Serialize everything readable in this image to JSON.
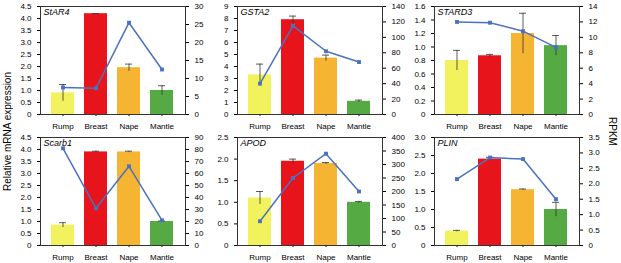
{
  "ylabel": "Relative mRNA expression",
  "y2label": "RPKM",
  "chart_data": [
    {
      "type": "bar",
      "title": "StAR4",
      "categories": [
        "Rump",
        "Breast",
        "Nape",
        "Mantle"
      ],
      "series": [
        {
          "type": "bar",
          "colors": [
            "#f2f25e",
            "#e8141c",
            "#f5b533",
            "#55aa44"
          ],
          "values": [
            0.9,
            4.2,
            1.95,
            1.0
          ],
          "errors": [
            0.35,
            0,
            0.15,
            0.2
          ]
        },
        {
          "type": "line",
          "axis": "y2",
          "color": "#4a72c0",
          "marker": "square",
          "values": [
            7.5,
            7.3,
            25.5,
            12.5
          ]
        }
      ],
      "ylim": [
        0,
        4.5
      ],
      "yticks": [
        0,
        0.5,
        {
          "value": 1,
          "label": "1.0"
        },
        1.5,
        {
          "value": 2,
          "label": "2.0"
        },
        2.5,
        {
          "value": 3,
          "label": "3.0"
        },
        3.5,
        {
          "value": 4,
          "label": "4.0"
        },
        4.5
      ],
      "y2lim": [
        0,
        30
      ],
      "y2ticks": [
        0,
        5,
        10,
        15,
        20,
        25,
        30
      ]
    },
    {
      "type": "bar",
      "title": "GSTA2",
      "categories": [
        "Rump",
        "Breast",
        "Nape",
        "Mantle"
      ],
      "series": [
        {
          "type": "bar",
          "colors": [
            "#f2f25e",
            "#e8141c",
            "#f5b533",
            "#55aa44"
          ],
          "values": [
            3.3,
            7.9,
            4.7,
            1.1
          ],
          "errors": [
            0.9,
            0.3,
            0.25,
            0.1
          ]
        },
        {
          "type": "line",
          "axis": "y2",
          "color": "#4a72c0",
          "marker": "square",
          "values": [
            40,
            115,
            82,
            68
          ]
        }
      ],
      "ylim": [
        0,
        9
      ],
      "yticks": [
        0,
        1,
        2,
        3,
        4,
        5,
        6,
        7,
        8,
        9
      ],
      "y2lim": [
        0,
        140
      ],
      "y2ticks": [
        0,
        20,
        40,
        60,
        80,
        100,
        120,
        140
      ]
    },
    {
      "type": "bar",
      "title": "STARD3",
      "categories": [
        "Rump",
        "Breast",
        "Nape",
        "Mantle"
      ],
      "series": [
        {
          "type": "bar",
          "colors": [
            "#f2f25e",
            "#e8141c",
            "#f5b533",
            "#55aa44"
          ],
          "values": [
            0.8,
            0.87,
            1.2,
            1.02
          ],
          "errors": [
            0.15,
            0.02,
            0.3,
            0.15
          ]
        },
        {
          "type": "line",
          "axis": "y2",
          "color": "#4a72c0",
          "marker": "square",
          "values": [
            12,
            11.9,
            10.8,
            8.7
          ]
        }
      ],
      "ylim": [
        0,
        1.6
      ],
      "yticks": [
        0,
        0.2,
        0.4,
        0.6,
        0.8,
        {
          "value": 1,
          "label": "1.0"
        },
        1.2,
        1.4,
        1.6
      ],
      "y2lim": [
        0,
        14
      ],
      "y2ticks": [
        0,
        2,
        4,
        6,
        8,
        10,
        12,
        14
      ]
    },
    {
      "type": "bar",
      "title": "Scarb1",
      "categories": [
        "Rump",
        "Breast",
        "Nape",
        "Mantle"
      ],
      "series": [
        {
          "type": "bar",
          "colors": [
            "#f2f25e",
            "#e8141c",
            "#f5b533",
            "#55aa44"
          ],
          "values": [
            0.85,
            3.9,
            3.9,
            1.0
          ],
          "errors": [
            0.1,
            0.03,
            0.03,
            0.02
          ]
        },
        {
          "type": "line",
          "axis": "y2",
          "color": "#4a72c0",
          "marker": "square",
          "values": [
            81,
            31,
            66,
            21
          ]
        }
      ],
      "ylim": [
        0,
        4.5
      ],
      "yticks": [
        0,
        0.5,
        {
          "value": 1,
          "label": "1.0"
        },
        1.5,
        {
          "value": 2,
          "label": "2.0"
        },
        2.5,
        {
          "value": 3,
          "label": "3.0"
        },
        3.5,
        {
          "value": 4,
          "label": "4.0"
        },
        4.5
      ],
      "y2lim": [
        0,
        90
      ],
      "y2ticks": [
        0,
        10,
        20,
        30,
        40,
        50,
        60,
        70,
        80,
        90
      ]
    },
    {
      "type": "bar",
      "title": "APOD",
      "categories": [
        "Rump",
        "Breast",
        "Nape",
        "Mantle"
      ],
      "series": [
        {
          "type": "bar",
          "colors": [
            "#f2f25e",
            "#e8141c",
            "#f5b533",
            "#55aa44"
          ],
          "values": [
            1.1,
            1.95,
            1.9,
            1.0
          ],
          "errors": [
            0.15,
            0.05,
            0.02,
            0.02
          ]
        },
        {
          "type": "line",
          "axis": "y2",
          "color": "#4a72c0",
          "marker": "square",
          "values": [
            90,
            250,
            340,
            200
          ]
        }
      ],
      "ylim": [
        0,
        2.5
      ],
      "yticks": [
        0,
        0.5,
        {
          "value": 1,
          "label": "1.0"
        },
        1.5,
        {
          "value": 2,
          "label": "2.0"
        },
        2.5
      ],
      "y2lim": [
        0,
        400
      ],
      "y2ticks": [
        0,
        50,
        100,
        150,
        200,
        250,
        300,
        350,
        400
      ]
    },
    {
      "type": "bar",
      "title": "PLIN",
      "categories": [
        "Rump",
        "Breast",
        "Nape",
        "Mantle"
      ],
      "series": [
        {
          "type": "bar",
          "colors": [
            "#f2f25e",
            "#e8141c",
            "#f5b533",
            "#55aa44"
          ],
          "values": [
            0.4,
            2.4,
            1.55,
            1.0
          ],
          "errors": [
            0.02,
            0.05,
            0.02,
            0.2
          ]
        },
        {
          "type": "line",
          "axis": "y2",
          "color": "#4a72c0",
          "marker": "square",
          "values": [
            2.15,
            2.85,
            2.8,
            1.5
          ]
        }
      ],
      "ylim": [
        0,
        3
      ],
      "yticks": [
        0,
        0.5,
        {
          "value": 1,
          "label": "1.0"
        },
        1.5,
        {
          "value": 2,
          "label": "2.0"
        },
        2.5,
        {
          "value": 3,
          "label": "3.0"
        }
      ],
      "y2lim": [
        0,
        3.5
      ],
      "y2ticks": [
        0,
        0.5,
        {
          "value": 1,
          "label": "1.0"
        },
        1.5,
        {
          "value": 2,
          "label": "2.0"
        },
        2.5,
        {
          "value": 3,
          "label": "3.0"
        },
        3.5
      ]
    }
  ]
}
